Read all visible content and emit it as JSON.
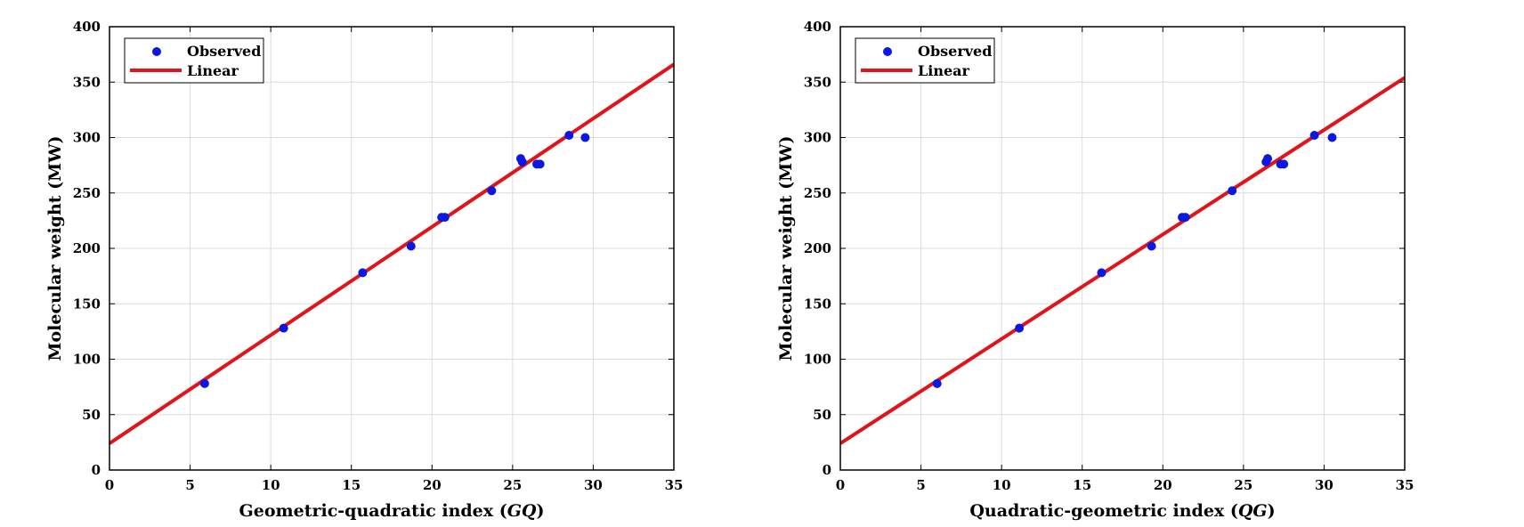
{
  "colors": {
    "observed": "#0a18e0",
    "linear": "#e0141a",
    "grid": "#dcdcdc",
    "axis": "#000000"
  },
  "chart_data": [
    {
      "type": "scatter",
      "xlabel_text": "Geometric-quadratic index (",
      "xlabel_symbol": "GQ",
      "xlabel_close": ")",
      "ylabel": "Molecular weight (MW)",
      "xlim": [
        0,
        35
      ],
      "ylim": [
        0,
        400
      ],
      "xticks": [
        0,
        5,
        10,
        15,
        20,
        25,
        30,
        35
      ],
      "yticks": [
        0,
        50,
        100,
        150,
        200,
        250,
        300,
        350,
        400
      ],
      "grid": true,
      "legend_position": "top-left",
      "series": [
        {
          "name": "Observed",
          "kind": "points",
          "points": [
            [
              5.9,
              78
            ],
            [
              10.8,
              128
            ],
            [
              15.7,
              178
            ],
            [
              18.7,
              202
            ],
            [
              20.6,
              228
            ],
            [
              20.8,
              228
            ],
            [
              23.7,
              252
            ],
            [
              25.5,
              281
            ],
            [
              25.6,
              278
            ],
            [
              26.5,
              276
            ],
            [
              26.7,
              276
            ],
            [
              28.5,
              302
            ],
            [
              29.5,
              300
            ]
          ]
        },
        {
          "name": "Linear",
          "kind": "line",
          "points": [
            [
              0,
              24
            ],
            [
              35,
              366
            ]
          ]
        }
      ]
    },
    {
      "type": "scatter",
      "xlabel_text": "Quadratic-geometric index (",
      "xlabel_symbol": "QG",
      "xlabel_close": ")",
      "ylabel": "Molecular weight (MW)",
      "xlim": [
        0,
        35
      ],
      "ylim": [
        0,
        400
      ],
      "xticks": [
        0,
        5,
        10,
        15,
        20,
        25,
        30,
        35
      ],
      "yticks": [
        0,
        50,
        100,
        150,
        200,
        250,
        300,
        350,
        400
      ],
      "grid": true,
      "legend_position": "top-left",
      "series": [
        {
          "name": "Observed",
          "kind": "points",
          "points": [
            [
              6.0,
              78
            ],
            [
              11.1,
              128
            ],
            [
              16.2,
              178
            ],
            [
              19.3,
              202
            ],
            [
              21.2,
              228
            ],
            [
              21.4,
              228
            ],
            [
              24.3,
              252
            ],
            [
              26.4,
              278
            ],
            [
              26.5,
              281
            ],
            [
              27.3,
              276
            ],
            [
              27.5,
              276
            ],
            [
              29.4,
              302
            ],
            [
              30.5,
              300
            ]
          ]
        },
        {
          "name": "Linear",
          "kind": "line",
          "points": [
            [
              0,
              24
            ],
            [
              35,
              354
            ]
          ]
        }
      ]
    }
  ]
}
